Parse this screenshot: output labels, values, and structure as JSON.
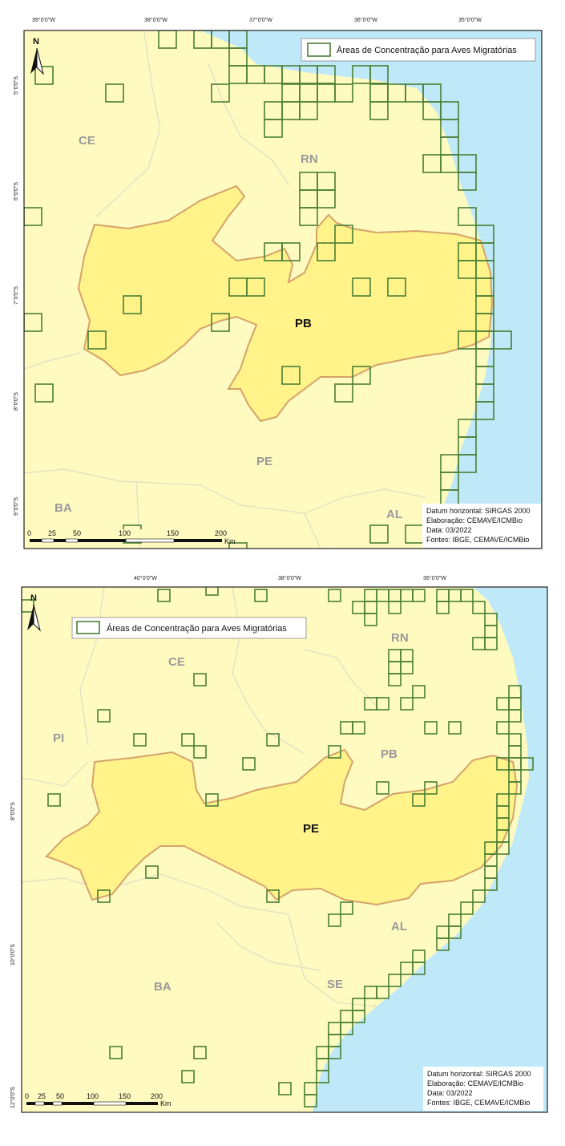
{
  "colors": {
    "sea": "#bfe8f8",
    "land": "#fffac0",
    "focus_state": "#fff38a",
    "focus_border": "#d4a36a",
    "grid_cell": "#4a7f35",
    "state_border": "#e2dcc2"
  },
  "maps": [
    {
      "focus_state": "PB",
      "top_coords": [
        "39°0'0\"W",
        "38°0'0\"W",
        "37°0'0\"W",
        "36°0'0\"W",
        "35°0'0\"W"
      ],
      "left_coords": [
        "5°0'0\"S",
        "6°0'0\"S",
        "7°0'0\"S",
        "8°0'0\"S",
        "9°0'0\"S"
      ],
      "state_labels": [
        "CE",
        "RN",
        "PE",
        "BA",
        "AL"
      ],
      "legend_label": "Áreas de Concentração para Aves Migratórias",
      "north_label": "N",
      "credits": [
        "Datum horizontal: SIRGAS 2000",
        "Elaboração: CEMAVE/ICMBio",
        "Data: 03/2022",
        "Fontes: IBGE, CEMAVE/ICMBio"
      ],
      "scalebar": {
        "ticks": [
          "0",
          "25",
          "50",
          "100",
          "150",
          "200"
        ],
        "unit": "Km"
      }
    },
    {
      "focus_state": "PE",
      "top_coords": [
        "40°0'0\"W",
        "38°0'0\"W",
        "36°0'0\"W"
      ],
      "left_coords": [
        "8°0'0\"S",
        "10°0'0\"S",
        "12°0'0\"S"
      ],
      "state_labels": [
        "RN",
        "CE",
        "PI",
        "PB",
        "AL",
        "BA",
        "SE"
      ],
      "legend_label": "Áreas de Concentração para Aves Migratórias",
      "north_label": "N",
      "credits": [
        "Datum horizontal: SIRGAS 2000",
        "Elaboração: CEMAVE/ICMBio",
        "Data: 03/2022",
        "Fontes: IBGE, CEMAVE/ICMBio"
      ],
      "scalebar": {
        "ticks": [
          "0",
          "25",
          "50",
          "100",
          "150",
          "200"
        ],
        "unit": "Km"
      }
    }
  ]
}
